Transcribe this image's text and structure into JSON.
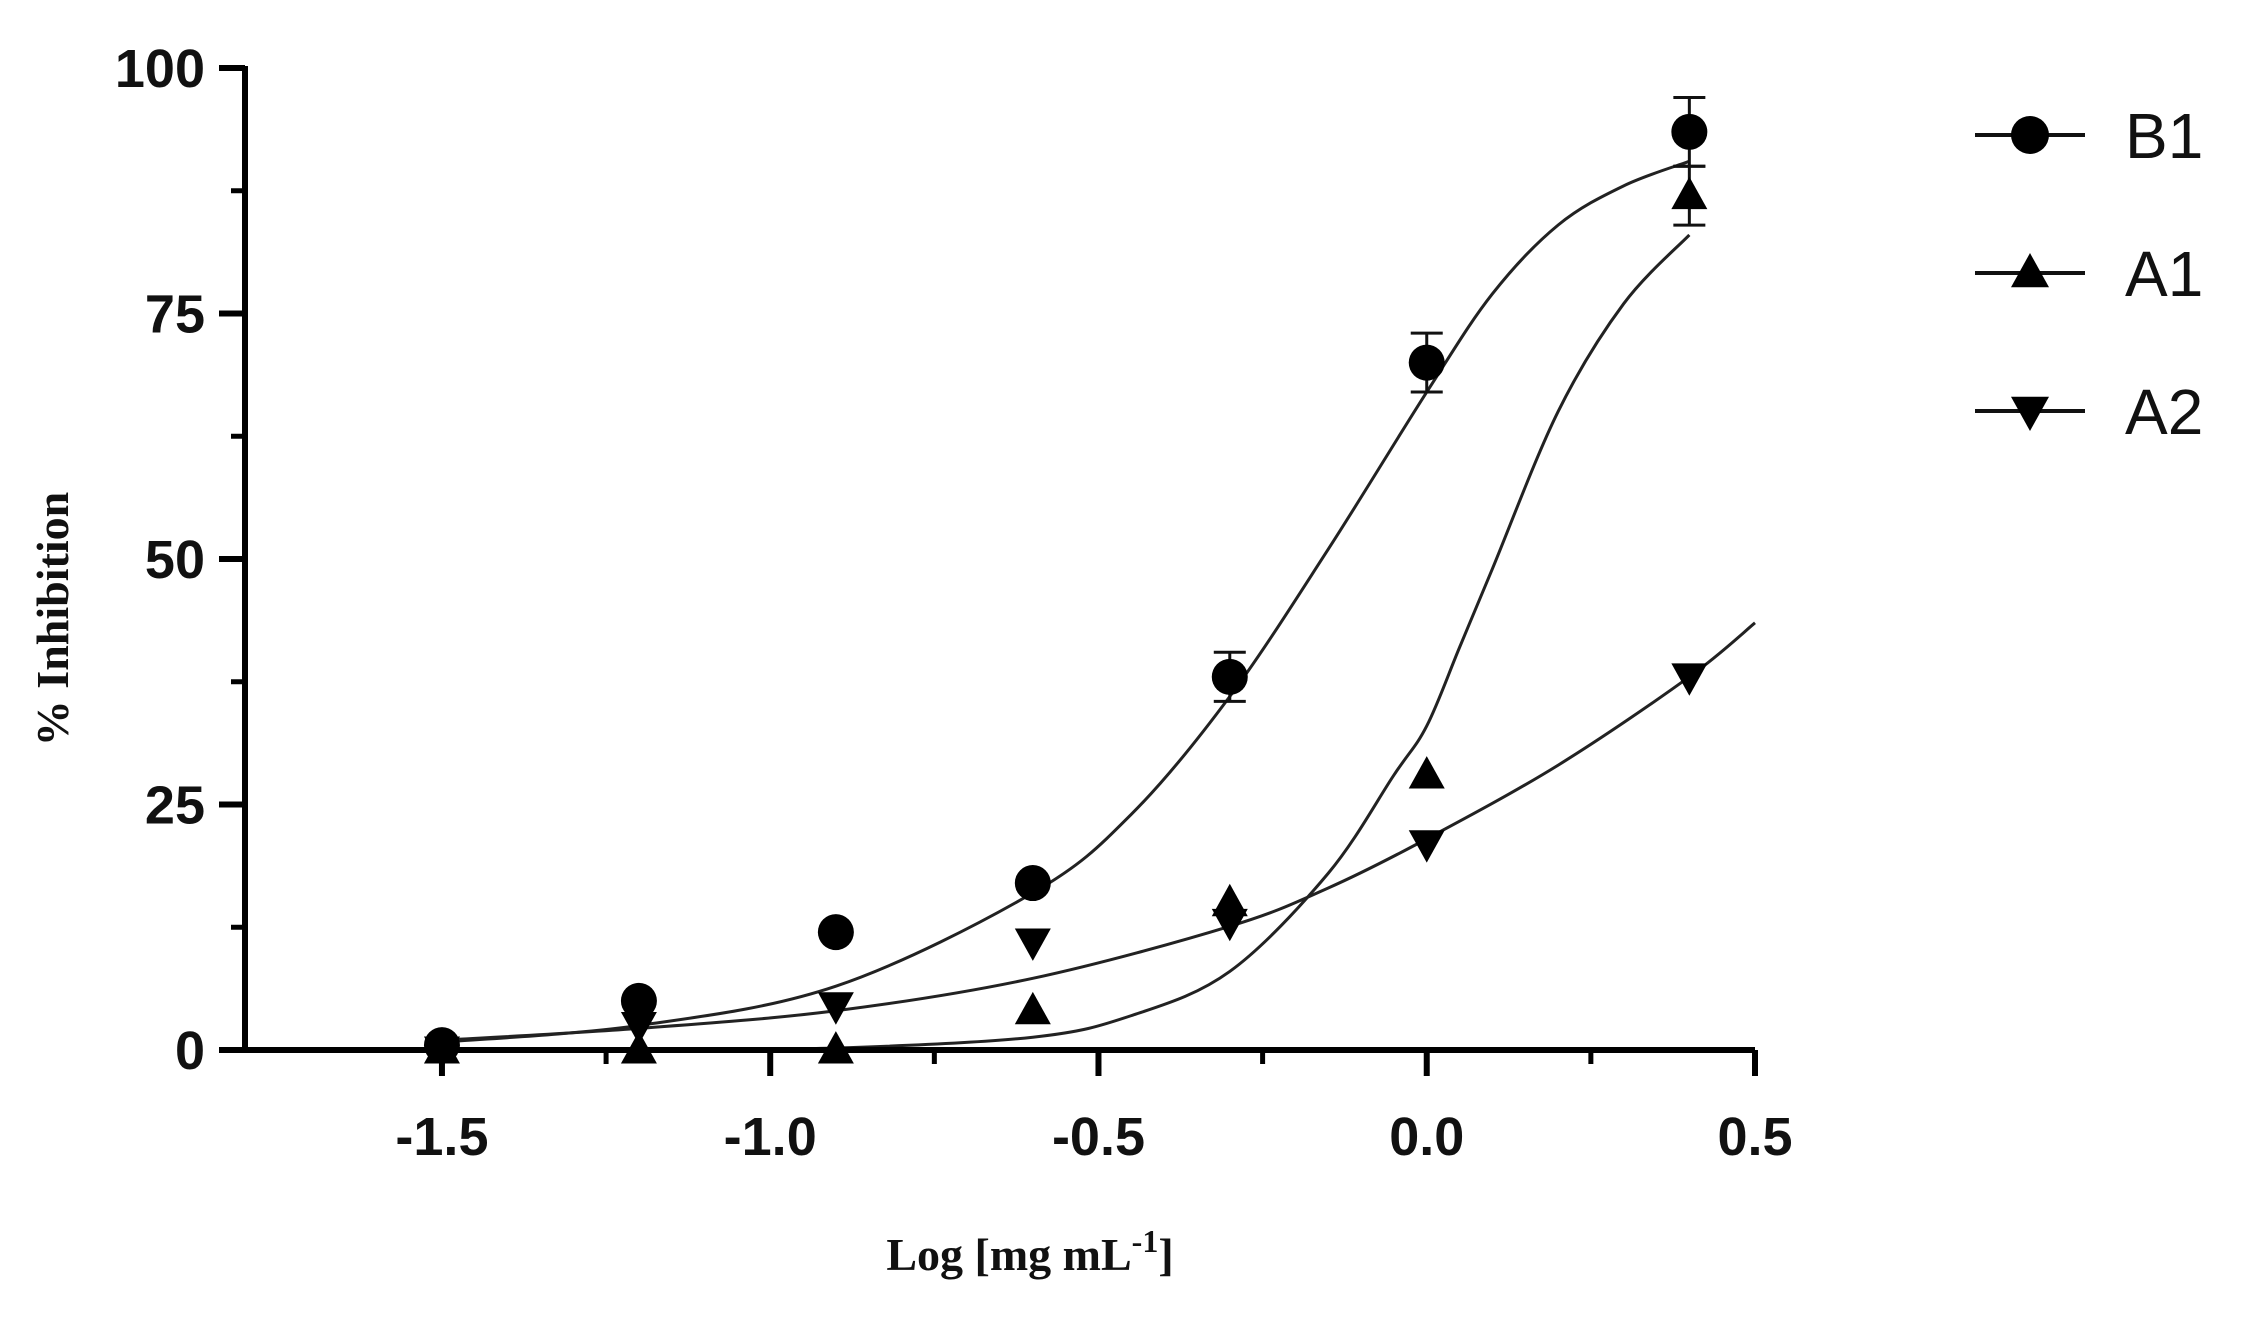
{
  "chart_data": {
    "type": "scatter",
    "title": "",
    "xlabel": "Log [mg mL",
    "xlabel_superscript": "-1",
    "xlabel_suffix": "]",
    "ylabel": "% Inhibition",
    "xlim": [
      -1.8,
      0.5
    ],
    "ylim": [
      0,
      100
    ],
    "x_ticks": [
      -1.5,
      -1.0,
      -0.5,
      0.0,
      0.5
    ],
    "x_tick_labels": [
      "-1.5",
      "-1.0",
      "-0.5",
      "0.0",
      "0.5"
    ],
    "y_ticks": [
      0,
      25,
      50,
      75,
      100
    ],
    "y_tick_labels": [
      "0",
      "25",
      "50",
      "75",
      "100"
    ],
    "grid": false,
    "legend_position": "top-right",
    "series": [
      {
        "name": "B1",
        "marker": "circle",
        "x": [
          -1.5,
          -1.2,
          -0.9,
          -0.6,
          -0.3,
          0.0,
          0.4
        ],
        "y": [
          0.5,
          5,
          12,
          17,
          38,
          70,
          93.5
        ],
        "yerr": [
          0,
          0,
          0,
          0,
          2.5,
          3,
          3.5
        ],
        "fit": [
          [
            -1.5,
            0.8
          ],
          [
            -1.2,
            2.5
          ],
          [
            -0.9,
            6.5
          ],
          [
            -0.6,
            16
          ],
          [
            -0.45,
            24
          ],
          [
            -0.3,
            36
          ],
          [
            -0.15,
            51
          ],
          [
            0.0,
            67
          ],
          [
            0.1,
            77
          ],
          [
            0.2,
            84
          ],
          [
            0.3,
            88
          ],
          [
            0.4,
            90.5
          ]
        ]
      },
      {
        "name": "A1",
        "marker": "triangle-up",
        "x": [
          -1.5,
          -1.2,
          -0.9,
          -0.6,
          -0.3,
          0.0,
          0.4
        ],
        "y": [
          0,
          0,
          0,
          4,
          15,
          28,
          87
        ],
        "yerr": [
          0,
          0,
          0,
          0,
          0,
          0,
          3
        ],
        "fit": [
          [
            -1.5,
            0
          ],
          [
            -1.2,
            0
          ],
          [
            -0.9,
            0.2
          ],
          [
            -0.6,
            1.3
          ],
          [
            -0.45,
            3.5
          ],
          [
            -0.3,
            8
          ],
          [
            -0.15,
            18
          ],
          [
            -0.05,
            28
          ],
          [
            0.0,
            33
          ],
          [
            0.05,
            41
          ],
          [
            0.1,
            49
          ],
          [
            0.2,
            65
          ],
          [
            0.3,
            76
          ],
          [
            0.4,
            83
          ]
        ]
      },
      {
        "name": "A2",
        "marker": "triangle-down",
        "x": [
          -1.5,
          -1.2,
          -0.9,
          -0.6,
          -0.3,
          0.0,
          0.4
        ],
        "y": [
          0,
          2.5,
          4.5,
          11,
          13,
          21,
          38
        ],
        "yerr": [
          0,
          0,
          0,
          0,
          0,
          0,
          0
        ],
        "fit": [
          [
            -1.5,
            1
          ],
          [
            -1.2,
            2.2
          ],
          [
            -0.9,
            4
          ],
          [
            -0.6,
            7.3
          ],
          [
            -0.3,
            12.6
          ],
          [
            -0.15,
            16.5
          ],
          [
            0.0,
            21.5
          ],
          [
            0.2,
            29
          ],
          [
            0.4,
            38
          ],
          [
            0.5,
            43.5
          ]
        ]
      }
    ]
  }
}
